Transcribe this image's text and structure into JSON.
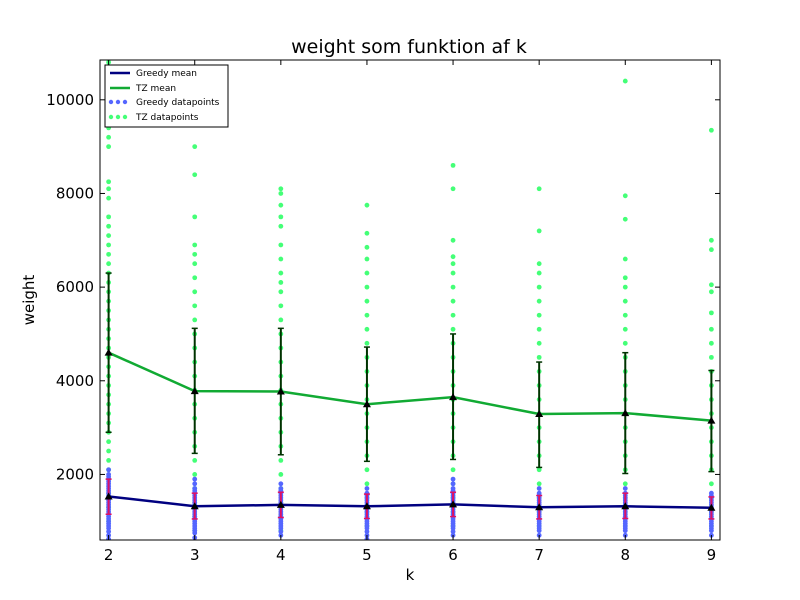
{
  "chart_data": {
    "type": "line",
    "title": "weight som funktion af k",
    "xlabel": "k",
    "ylabel": "weight",
    "xlim": [
      1.9,
      9.1
    ],
    "ylim": [
      600,
      10850
    ],
    "x_ticks": [
      2,
      3,
      4,
      5,
      6,
      7,
      8,
      9
    ],
    "y_ticks": [
      2000,
      4000,
      6000,
      8000,
      10000
    ],
    "grid": false,
    "legend_position": "top-left",
    "legend": [
      "Greedy mean",
      "TZ mean",
      "Greedy datapoints",
      "TZ datapoints"
    ],
    "colors": {
      "greedy_mean": "#000080",
      "tz_mean": "#11aa33",
      "greedy_points": "#5566ff",
      "tz_points": "#44ff77",
      "greedy_errorbar": "#dd1166",
      "tz_errorbar": "#003300",
      "marker": "#000000"
    },
    "series": [
      {
        "name": "Greedy mean",
        "x": [
          2,
          3,
          4,
          5,
          6,
          7,
          8,
          9
        ],
        "values": [
          1530,
          1320,
          1350,
          1320,
          1360,
          1300,
          1320,
          1290
        ],
        "err_low": [
          1150,
          1050,
          1080,
          1060,
          1100,
          1050,
          1060,
          1050
        ],
        "err_high": [
          1900,
          1600,
          1620,
          1580,
          1620,
          1550,
          1600,
          1520
        ]
      },
      {
        "name": "TZ mean",
        "x": [
          2,
          3,
          4,
          5,
          6,
          7,
          8,
          9
        ],
        "values": [
          4600,
          3780,
          3770,
          3500,
          3650,
          3290,
          3310,
          3150
        ],
        "err_low": [
          2900,
          2450,
          2420,
          2280,
          2320,
          2150,
          2020,
          2060
        ],
        "err_high": [
          6300,
          5120,
          5120,
          4720,
          5000,
          4400,
          4600,
          4220
        ]
      }
    ],
    "greedy_points": [
      {
        "x": 2,
        "values": [
          620,
          700,
          780,
          850,
          900,
          950,
          1000,
          1050,
          1100,
          1150,
          1200,
          1250,
          1300,
          1350,
          1400,
          1450,
          1500,
          1550,
          1600,
          1650,
          1700,
          1750,
          1800,
          1850,
          1900,
          1950,
          2000,
          2100
        ]
      },
      {
        "x": 3,
        "values": [
          650,
          750,
          800,
          850,
          900,
          950,
          1000,
          1050,
          1100,
          1150,
          1200,
          1250,
          1300,
          1350,
          1400,
          1450,
          1500,
          1550,
          1600,
          1650,
          1700,
          1800,
          1900
        ]
      },
      {
        "x": 4,
        "values": [
          700,
          780,
          850,
          900,
          950,
          1000,
          1050,
          1100,
          1150,
          1200,
          1250,
          1300,
          1350,
          1400,
          1450,
          1500,
          1550,
          1600,
          1650,
          1700,
          1800
        ]
      },
      {
        "x": 5,
        "values": [
          620,
          700,
          780,
          850,
          900,
          950,
          1000,
          1050,
          1100,
          1150,
          1200,
          1250,
          1300,
          1350,
          1400,
          1450,
          1500,
          1550,
          1600,
          1700
        ]
      },
      {
        "x": 6,
        "values": [
          700,
          780,
          850,
          900,
          950,
          1000,
          1050,
          1100,
          1150,
          1200,
          1250,
          1300,
          1350,
          1400,
          1450,
          1500,
          1550,
          1600,
          1650,
          1700,
          1800,
          1900
        ]
      },
      {
        "x": 7,
        "values": [
          700,
          800,
          850,
          900,
          950,
          1000,
          1050,
          1100,
          1150,
          1200,
          1250,
          1300,
          1350,
          1400,
          1450,
          1500,
          1550,
          1600,
          1700
        ]
      },
      {
        "x": 8,
        "values": [
          700,
          800,
          850,
          900,
          950,
          1000,
          1050,
          1100,
          1150,
          1200,
          1250,
          1300,
          1350,
          1400,
          1450,
          1500,
          1550,
          1600,
          1700
        ]
      },
      {
        "x": 9,
        "values": [
          700,
          800,
          850,
          900,
          950,
          1000,
          1050,
          1100,
          1150,
          1200,
          1250,
          1300,
          1350,
          1400,
          1450,
          1500,
          1550,
          1600
        ]
      }
    ],
    "tz_points": [
      {
        "x": 2,
        "values": [
          1000,
          1300,
          1600,
          1900,
          2100,
          2300,
          2500,
          2700,
          2900,
          3100,
          3300,
          3500,
          3700,
          3900,
          4100,
          4300,
          4500,
          4700,
          4900,
          5100,
          5300,
          5500,
          5700,
          5900,
          6100,
          6300,
          6500,
          6700,
          6900,
          7100,
          7300,
          7500,
          7900,
          8100,
          8250,
          9000,
          9200,
          9400,
          9800,
          10500,
          10800
        ]
      },
      {
        "x": 3,
        "values": [
          800,
          1100,
          1400,
          1700,
          2000,
          2300,
          2600,
          2900,
          3200,
          3500,
          3800,
          4100,
          4400,
          4700,
          5000,
          5300,
          5600,
          5900,
          6200,
          6500,
          6700,
          6900,
          7500,
          8400,
          9000
        ]
      },
      {
        "x": 4,
        "values": [
          800,
          1100,
          1400,
          1700,
          2000,
          2300,
          2600,
          2900,
          3200,
          3500,
          3800,
          4100,
          4400,
          4700,
          5000,
          5300,
          5600,
          5900,
          6100,
          6300,
          6600,
          6900,
          7300,
          7500,
          7750,
          8000,
          8100
        ]
      },
      {
        "x": 5,
        "values": [
          900,
          1200,
          1500,
          1800,
          2100,
          2400,
          2700,
          3000,
          3300,
          3600,
          3900,
          4200,
          4500,
          4800,
          5100,
          5400,
          5700,
          6000,
          6300,
          6600,
          6850,
          7150,
          7750
        ]
      },
      {
        "x": 6,
        "values": [
          900,
          1200,
          1500,
          1800,
          2100,
          2400,
          2700,
          3000,
          3300,
          3600,
          3900,
          4200,
          4500,
          4800,
          5100,
          5400,
          5700,
          6000,
          6300,
          6500,
          6650,
          7000,
          8100,
          8600
        ]
      },
      {
        "x": 7,
        "values": [
          900,
          1200,
          1500,
          1800,
          2100,
          2400,
          2700,
          3000,
          3300,
          3600,
          3900,
          4200,
          4500,
          4800,
          5100,
          5400,
          5700,
          6000,
          6300,
          6500,
          7200,
          8100
        ]
      },
      {
        "x": 8,
        "values": [
          900,
          1200,
          1500,
          1800,
          2100,
          2400,
          2700,
          3000,
          3300,
          3600,
          3900,
          4200,
          4500,
          4800,
          5100,
          5400,
          5700,
          6000,
          6200,
          6600,
          7450,
          7950,
          10400
        ]
      },
      {
        "x": 9,
        "values": [
          900,
          1200,
          1500,
          1800,
          2100,
          2400,
          2700,
          3000,
          3300,
          3600,
          3900,
          4200,
          4500,
          4800,
          5100,
          5450,
          5900,
          6050,
          6800,
          7000,
          9350
        ]
      }
    ]
  }
}
